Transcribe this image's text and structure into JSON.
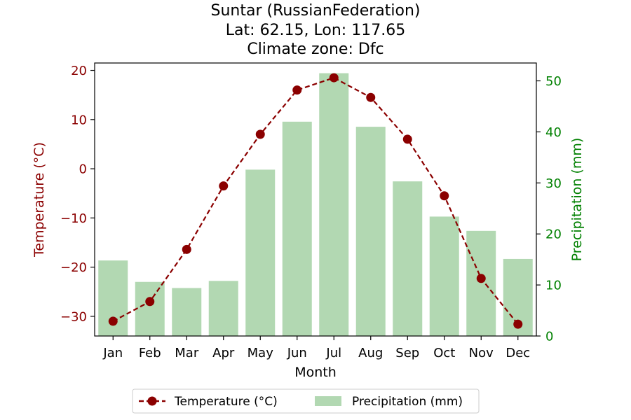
{
  "chart_data": {
    "type": "bar+line",
    "title": [
      "Suntar (RussianFederation)",
      "Lat: 62.15, Lon: 117.65",
      "Climate zone: Dfc"
    ],
    "xlabel": "Month",
    "categories": [
      "Jan",
      "Feb",
      "Mar",
      "Apr",
      "May",
      "Jun",
      "Jul",
      "Aug",
      "Sep",
      "Oct",
      "Nov",
      "Dec"
    ],
    "y_left": {
      "label": "Temperature (°C)",
      "range": [
        -34,
        21.5
      ],
      "ticks": [
        20,
        10,
        0,
        -10,
        -20,
        -30
      ],
      "tick_labels": [
        "20",
        "10",
        "0",
        "−10",
        "−20",
        "−30"
      ],
      "color": "#8b0000"
    },
    "y_right": {
      "label": "Precipitation (mm)",
      "range": [
        0,
        53.5
      ],
      "ticks": [
        0,
        10,
        20,
        30,
        40,
        50
      ],
      "tick_labels": [
        "0",
        "10",
        "20",
        "30",
        "40",
        "50"
      ],
      "color": "#008000"
    },
    "series": [
      {
        "name": "Temperature (°C)",
        "type": "line",
        "axis": "left",
        "style": "dashed with circle markers",
        "color": "#8b0000",
        "values": [
          -31.0,
          -27.0,
          -16.4,
          -3.5,
          7.0,
          16.0,
          18.5,
          14.5,
          6.0,
          -5.5,
          -22.3,
          -31.6
        ]
      },
      {
        "name": "Precipitation (mm)",
        "type": "bar",
        "axis": "right",
        "color": "#b2d8b2",
        "values": [
          14.8,
          10.6,
          9.4,
          10.8,
          32.6,
          42.0,
          51.5,
          41.0,
          30.3,
          23.4,
          20.6,
          15.1
        ]
      }
    ],
    "legend": {
      "placement": "bottom-center"
    }
  }
}
